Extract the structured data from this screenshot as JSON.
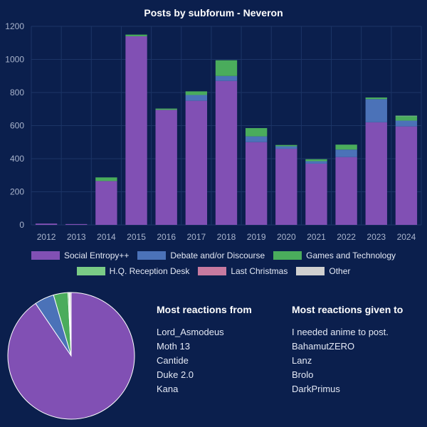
{
  "chart_data": [
    {
      "type": "bar",
      "stacked": true,
      "title": "Posts by subforum - Neveron",
      "categories": [
        "2012",
        "2013",
        "2014",
        "2015",
        "2016",
        "2017",
        "2018",
        "2019",
        "2020",
        "2021",
        "2022",
        "2023",
        "2024"
      ],
      "ylim": [
        0,
        1200
      ],
      "yticks": [
        0,
        200,
        400,
        600,
        800,
        1000,
        1200
      ],
      "grid": true,
      "series": [
        {
          "name": "Social Entropy++",
          "color": "#8150b4",
          "values": [
            8,
            5,
            265,
            1140,
            695,
            750,
            870,
            500,
            460,
            370,
            410,
            620,
            595
          ]
        },
        {
          "name": "Debate and/or Discourse",
          "color": "#4b72b8",
          "values": [
            0,
            0,
            0,
            0,
            0,
            35,
            30,
            35,
            15,
            15,
            45,
            140,
            35
          ]
        },
        {
          "name": "Games and Technology",
          "color": "#4aac5c",
          "values": [
            0,
            0,
            22,
            10,
            8,
            22,
            95,
            50,
            8,
            12,
            30,
            10,
            25
          ]
        },
        {
          "name": "H.Q. Reception Desk",
          "color": "#7acb86",
          "values": [
            0,
            0,
            0,
            0,
            0,
            0,
            0,
            0,
            0,
            0,
            0,
            0,
            5
          ]
        },
        {
          "name": "Last Christmas",
          "color": "#c77aa0",
          "values": [
            0,
            0,
            0,
            0,
            0,
            0,
            0,
            0,
            0,
            0,
            0,
            0,
            0
          ]
        },
        {
          "name": "Other",
          "color": "#d0d0d0",
          "values": [
            0,
            0,
            0,
            0,
            0,
            0,
            0,
            0,
            0,
            0,
            0,
            0,
            0
          ]
        }
      ]
    },
    {
      "type": "pie",
      "slices": [
        {
          "name": "Social Entropy++",
          "value": 90.5,
          "color": "#8150b4"
        },
        {
          "name": "Debate and/or Discourse",
          "value": 5.0,
          "color": "#4b72b8"
        },
        {
          "name": "Games and Technology",
          "value": 3.7,
          "color": "#4aac5c"
        },
        {
          "name": "H.Q. Reception Desk",
          "value": 0.3,
          "color": "#7acb86"
        },
        {
          "name": "Last Christmas",
          "value": 0.1,
          "color": "#c77aa0"
        },
        {
          "name": "Other",
          "value": 0.4,
          "color": "#d0d0d0"
        }
      ]
    }
  ],
  "reactions": {
    "from": {
      "title": "Most reactions from",
      "names": [
        "Lord_Asmodeus",
        "Moth 13",
        "Cantide",
        "Duke 2.0",
        "Kana"
      ]
    },
    "given_to": {
      "title": "Most reactions given to",
      "names": [
        "I needed anime to post.",
        "BahamutZERO",
        "Lanz",
        "Brolo",
        "DarkPrimus"
      ]
    }
  },
  "colors": {
    "background": "#0b1f4d",
    "gridline": "#1c3566",
    "tick_text": "#a9b4cc"
  }
}
